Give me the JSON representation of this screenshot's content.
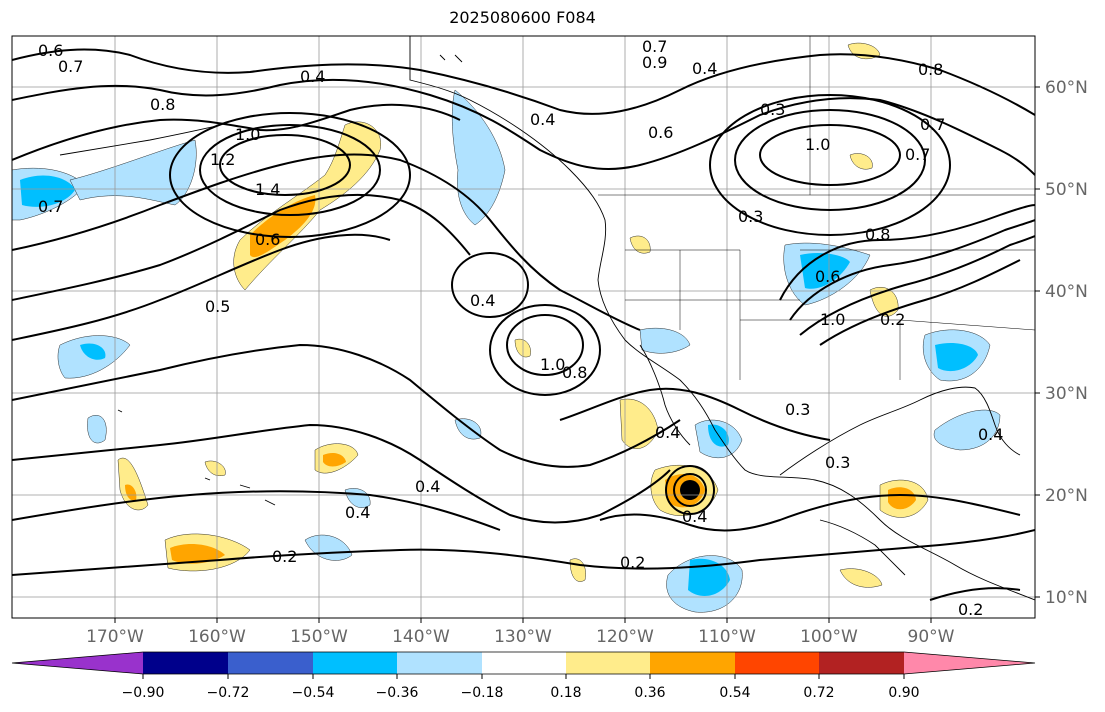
{
  "title": "2025080600 F084",
  "map": {
    "lat_labels": [
      "60°N",
      "50°N",
      "40°N",
      "30°N",
      "20°N",
      "10°N"
    ],
    "lon_labels": [
      "170°W",
      "160°W",
      "150°W",
      "140°W",
      "130°W",
      "120°W",
      "110°W",
      "100°W",
      "90°W"
    ],
    "contour_labels": [
      "0.6",
      "0.7",
      "0.8",
      "0.4",
      "1.0",
      "1.2",
      "1.4",
      "0.6",
      "0.7",
      "0.5",
      "0.4",
      "0.4",
      "1.0",
      "0.8",
      "0.7",
      "0.9",
      "0.4",
      "0.6",
      "0.3",
      "1.0",
      "0.3",
      "0.8",
      "0.8",
      "0.7",
      "0.7",
      "0.4",
      "0.3",
      "0.3",
      "0.4",
      "0.4",
      "0.2",
      "0.2",
      "0.2",
      "0.4",
      "0.4",
      "1.0",
      "0.2",
      "0.6"
    ]
  },
  "colorbar": {
    "colors": [
      "#9932cc",
      "#00008b",
      "#3a5fcd",
      "#00bfff",
      "#b0e2ff",
      "#ffffff",
      "#ffec8b",
      "#ffa500",
      "#ff4500",
      "#b22222",
      "#ff88aa"
    ],
    "ticks": [
      "−0.90",
      "−0.72",
      "−0.54",
      "−0.36",
      "−0.18",
      "0.18",
      "0.36",
      "0.54",
      "0.72",
      "0.90"
    ]
  }
}
